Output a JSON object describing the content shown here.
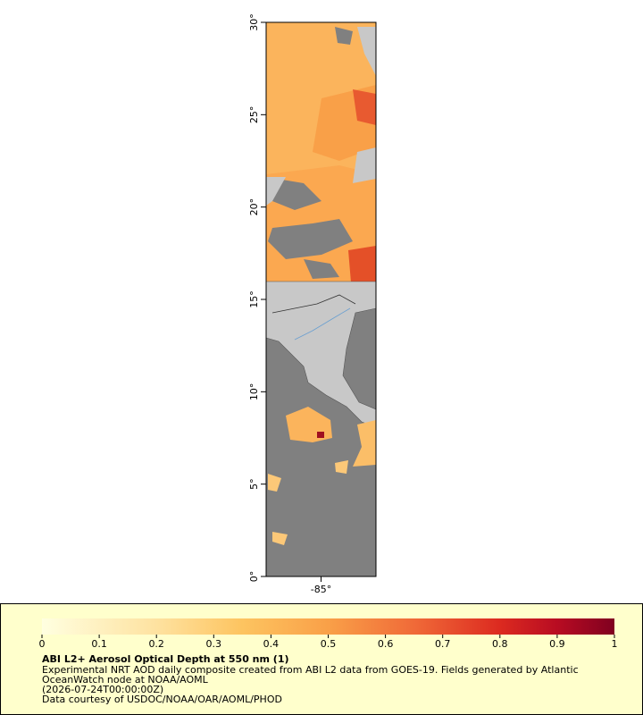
{
  "map": {
    "ylim": [
      0,
      30
    ],
    "xlim": [
      -88,
      -82
    ],
    "yticks": [
      {
        "value": 30,
        "label": "30°"
      },
      {
        "value": 25,
        "label": "25°"
      },
      {
        "value": 20,
        "label": "20°"
      },
      {
        "value": 15,
        "label": "15°"
      },
      {
        "value": 10,
        "label": "10°"
      },
      {
        "value": 5,
        "label": "5°"
      },
      {
        "value": 0,
        "label": "0°"
      }
    ],
    "xticks": [
      {
        "value": -85,
        "label": "-85°"
      }
    ]
  },
  "colorbar": {
    "range": [
      0,
      1
    ],
    "ticks": [
      0,
      0.1,
      0.2,
      0.3,
      0.4,
      0.5,
      0.6,
      0.7,
      0.8,
      0.9,
      1
    ]
  },
  "legend": {
    "title": "ABI L2+ Aerosol Optical Depth at 550 nm (1)",
    "lines": [
      "Experimental NRT AOD daily composite created from ABI L2 data from GOES-19. Fields generated by Atlantic",
      "OceanWatch node at NOAA/AOML",
      "(2026-07-24T00:00:00Z)",
      "Data courtesy of USDOC/NOAA/OAR/AOML/PHOD"
    ]
  }
}
